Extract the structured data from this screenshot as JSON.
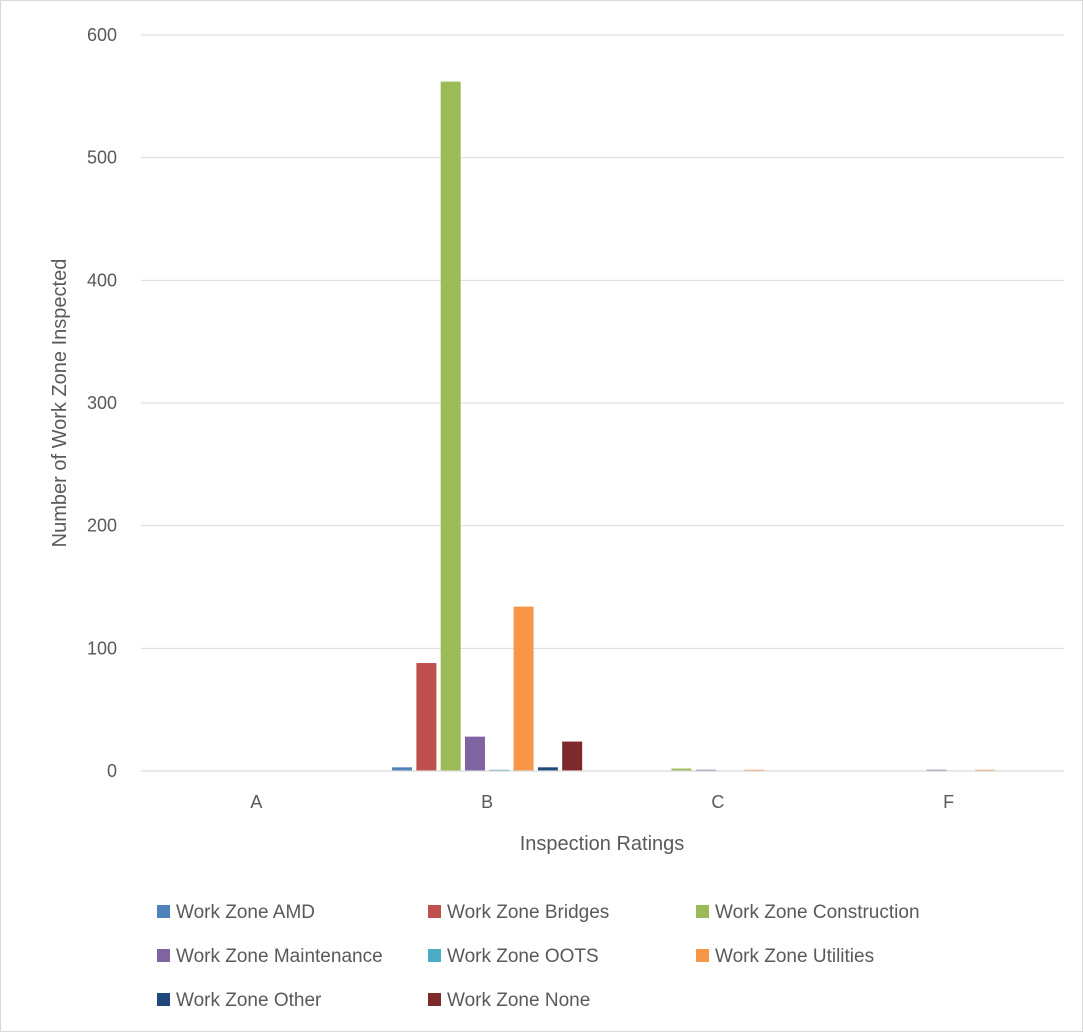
{
  "chart_data": {
    "type": "bar",
    "title": "",
    "xlabel": "Inspection Ratings",
    "ylabel": "Number of Work Zone Inspected",
    "categories": [
      "A",
      "B",
      "C",
      "F"
    ],
    "ylim": [
      0,
      600
    ],
    "yticks": [
      0,
      100,
      200,
      300,
      400,
      500,
      600
    ],
    "grid": true,
    "legend_position": "bottom",
    "series": [
      {
        "name": "Work Zone AMD",
        "color": "#4f81bd",
        "values": [
          0,
          3,
          0,
          0
        ]
      },
      {
        "name": "Work Zone Bridges",
        "color": "#c0504d",
        "values": [
          0,
          88,
          0,
          0
        ]
      },
      {
        "name": "Work Zone Construction",
        "color": "#9bbb59",
        "values": [
          0,
          562,
          2,
          0
        ]
      },
      {
        "name": "Work Zone Maintenance",
        "color": "#8064a2",
        "values": [
          0,
          28,
          1,
          1
        ]
      },
      {
        "name": "Work Zone OOTS",
        "color": "#4bacc6",
        "values": [
          0,
          1,
          0,
          0
        ]
      },
      {
        "name": "Work Zone Utilities",
        "color": "#f79646",
        "values": [
          0,
          134,
          1,
          1
        ]
      },
      {
        "name": "Work Zone Other",
        "color": "#1f497d",
        "values": [
          0,
          3,
          0,
          0
        ]
      },
      {
        "name": "Work Zone None",
        "color": "#7f2a2a",
        "values": [
          0,
          24,
          0,
          0
        ]
      }
    ]
  }
}
